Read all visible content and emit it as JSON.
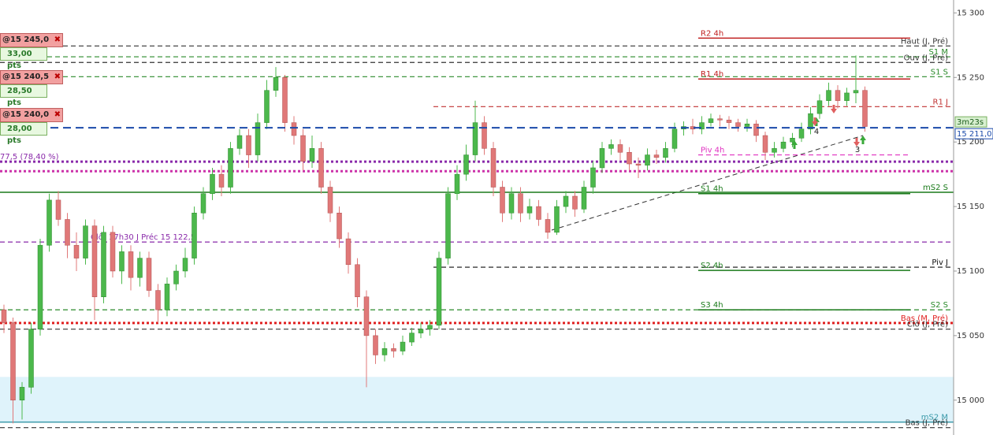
{
  "chart_data": {
    "type": "candlestick",
    "ylim": [
      14973,
      15310
    ],
    "yticks": [
      {
        "value": 15300,
        "label": "15 300"
      },
      {
        "value": 15250,
        "label": "15 250"
      },
      {
        "value": 15200,
        "label": "15 200"
      },
      {
        "value": 15150,
        "label": "15 150"
      },
      {
        "value": 15100,
        "label": "15 100"
      },
      {
        "value": 15050,
        "label": "15 050"
      },
      {
        "value": 15000,
        "label": "15 000"
      }
    ],
    "up_color": "#4cb84c",
    "down_color": "#e07878",
    "candles": [
      [
        15070,
        15074,
        15052,
        15060
      ],
      [
        15060,
        15064,
        14982,
        15000
      ],
      [
        15000,
        15014,
        14985,
        15010
      ],
      [
        15010,
        15060,
        15005,
        15055
      ],
      [
        15055,
        15125,
        15050,
        15120
      ],
      [
        15120,
        15160,
        15115,
        15155
      ],
      [
        15155,
        15162,
        15135,
        15140
      ],
      [
        15140,
        15145,
        15110,
        15120
      ],
      [
        15120,
        15130,
        15100,
        15110
      ],
      [
        15110,
        15140,
        15105,
        15135
      ],
      [
        15135,
        15140,
        15062,
        15080
      ],
      [
        15080,
        15135,
        15075,
        15130
      ],
      [
        15130,
        15135,
        15095,
        15100
      ],
      [
        15100,
        15120,
        15090,
        15115
      ],
      [
        15115,
        15120,
        15085,
        15095
      ],
      [
        15095,
        15115,
        15088,
        15110
      ],
      [
        15110,
        15115,
        15080,
        15085
      ],
      [
        15085,
        15090,
        15060,
        15070
      ],
      [
        15070,
        15095,
        15065,
        15090
      ],
      [
        15090,
        15105,
        15085,
        15100
      ],
      [
        15100,
        15118,
        15095,
        15110
      ],
      [
        15110,
        15150,
        15105,
        15145
      ],
      [
        15145,
        15165,
        15140,
        15160
      ],
      [
        15160,
        15180,
        15155,
        15175
      ],
      [
        15175,
        15182,
        15158,
        15165
      ],
      [
        15165,
        15200,
        15160,
        15195
      ],
      [
        15195,
        15210,
        15190,
        15205
      ],
      [
        15205,
        15210,
        15180,
        15190
      ],
      [
        15190,
        15222,
        15185,
        15215
      ],
      [
        15215,
        15248,
        15210,
        15240
      ],
      [
        15240,
        15258,
        15235,
        15250
      ],
      [
        15250,
        15252,
        15208,
        15215
      ],
      [
        15215,
        15220,
        15198,
        15205
      ],
      [
        15205,
        15210,
        15178,
        15185
      ],
      [
        15185,
        15205,
        15180,
        15195
      ],
      [
        15195,
        15200,
        15160,
        15165
      ],
      [
        15165,
        15170,
        15138,
        15145
      ],
      [
        15145,
        15150,
        15118,
        15125
      ],
      [
        15125,
        15130,
        15098,
        15105
      ],
      [
        15105,
        15110,
        15072,
        15080
      ],
      [
        15080,
        15085,
        15010,
        15050
      ],
      [
        15050,
        15055,
        15028,
        15035
      ],
      [
        15035,
        15045,
        15030,
        15040
      ],
      [
        15040,
        15044,
        15033,
        15038
      ],
      [
        15038,
        15050,
        15035,
        15045
      ],
      [
        15045,
        15056,
        15042,
        15052
      ],
      [
        15052,
        15060,
        15048,
        15055
      ],
      [
        15055,
        15062,
        15050,
        15058
      ],
      [
        15058,
        15115,
        15055,
        15110
      ],
      [
        15110,
        15165,
        15105,
        15160
      ],
      [
        15160,
        15182,
        15155,
        15175
      ],
      [
        15175,
        15198,
        15170,
        15190
      ],
      [
        15190,
        15232,
        15185,
        15215
      ],
      [
        15215,
        15220,
        15190,
        15195
      ],
      [
        15195,
        15200,
        15158,
        15165
      ],
      [
        15165,
        15170,
        15138,
        15145
      ],
      [
        15145,
        15165,
        15140,
        15160
      ],
      [
        15160,
        15165,
        15138,
        15145
      ],
      [
        15145,
        15156,
        15140,
        15150
      ],
      [
        15150,
        15155,
        15135,
        15140
      ],
      [
        15140,
        15145,
        15125,
        15130
      ],
      [
        15130,
        15155,
        15128,
        15150
      ],
      [
        15150,
        15162,
        15145,
        15158
      ],
      [
        15158,
        15162,
        15142,
        15148
      ],
      [
        15148,
        15170,
        15145,
        15165
      ],
      [
        15165,
        15185,
        15160,
        15180
      ],
      [
        15180,
        15200,
        15176,
        15195
      ],
      [
        15195,
        15202,
        15190,
        15198
      ],
      [
        15198,
        15202,
        15186,
        15192
      ],
      [
        15192,
        15196,
        15178,
        15183
      ],
      [
        15183,
        15188,
        15172,
        15182
      ],
      [
        15182,
        15195,
        15178,
        15190
      ],
      [
        15190,
        15194,
        15183,
        15188
      ],
      [
        15188,
        15200,
        15184,
        15195
      ],
      [
        15195,
        15215,
        15192,
        15210
      ],
      [
        15210,
        15216,
        15205,
        15212
      ],
      [
        15212,
        15218,
        15206,
        15210
      ],
      [
        15210,
        15220,
        15206,
        15215
      ],
      [
        15215,
        15222,
        15212,
        15218
      ],
      [
        15218,
        15221,
        15212,
        15217
      ],
      [
        15217,
        15220,
        15210,
        15215
      ],
      [
        15215,
        15218,
        15208,
        15212
      ],
      [
        15212,
        15218,
        15208,
        15214
      ],
      [
        15214,
        15217,
        15200,
        15205
      ],
      [
        15205,
        15208,
        15186,
        15192
      ],
      [
        15192,
        15200,
        15188,
        15195
      ],
      [
        15195,
        15204,
        15192,
        15200
      ],
      [
        15200,
        15207,
        15196,
        15203
      ],
      [
        15203,
        15215,
        15200,
        15210
      ],
      [
        15210,
        15227,
        15206,
        15222
      ],
      [
        15222,
        15237,
        15218,
        15232
      ],
      [
        15232,
        15246,
        15228,
        15240
      ],
      [
        15240,
        15244,
        15226,
        15232
      ],
      [
        15232,
        15242,
        15228,
        15238
      ],
      [
        15238,
        15267,
        15230,
        15240
      ],
      [
        15240,
        15243,
        15208,
        15212
      ]
    ],
    "zone": [
      14983,
      15018
    ],
    "zone_color": "#dff3fb",
    "levels": [
      {
        "label": "Haut (J, Pré)",
        "value": 15274.4,
        "color": "#333333",
        "style": "dashed"
      },
      {
        "label": "S1 M",
        "value": 15266,
        "color": "#2a8a2a",
        "style": "dashed"
      },
      {
        "label": "Ouv (J, Pré)",
        "value": 15261.6,
        "color": "#333333",
        "style": "dashed"
      },
      {
        "label": "S1 S",
        "value": 15250.6,
        "color": "#2a8a2a",
        "style": "dashed"
      },
      {
        "label": "77,5 (78,40 %)",
        "value": 15184.8,
        "color": "#8a2aaa",
        "style": "dotted"
      },
      {
        "value": 15177.4,
        "color": "#cc33aa",
        "style": "dotted"
      },
      {
        "label": "mS2 S",
        "value": 15161,
        "color": "#1a7a1a",
        "style": "solid"
      },
      {
        "label": "Clôt 17h30 J Préc 15 122,5",
        "value": 15122.5,
        "color": "#8a2aaa",
        "style": "dashed"
      },
      {
        "label": "S2 S",
        "value": 15070,
        "color": "#2a8a2a",
        "style": "dashed"
      },
      {
        "label": "Bas (M, Pré)",
        "value": 15059.8,
        "color": "#e02020",
        "style": "dotted"
      },
      {
        "label": "Clô (J, Pré)",
        "value": 15055,
        "color": "#333333",
        "style": "dashed"
      },
      {
        "label": "mS2 M",
        "value": 14983,
        "color": "#3a9aaa",
        "style": "solid"
      },
      {
        "label": "Bas (J, Pré)",
        "value": 14978.7,
        "color": "#333333",
        "style": "dashed"
      }
    ],
    "levels_daily": [
      {
        "label": "R1 J",
        "value": 15227.4,
        "color": "#c03030",
        "style": "dashed"
      },
      {
        "label": "Piv J",
        "value": 15103,
        "color": "#111111",
        "style": "dashed"
      }
    ],
    "levels_4h": [
      {
        "label": "R2 4h",
        "value": 15280.5,
        "color": "#c02020",
        "style": "solid"
      },
      {
        "label": "R1 4h",
        "value": 15248.8,
        "color": "#c02020",
        "style": "solid"
      },
      {
        "label": "Piv 4h",
        "value": 15190,
        "color": "#e030c0",
        "style": "dashed"
      },
      {
        "label": "S1 4h",
        "value": 15160,
        "color": "#1a7a1a",
        "style": "solid"
      },
      {
        "label": "S2 4h",
        "value": 15100.5,
        "color": "#1a7a1a",
        "style": "solid"
      },
      {
        "label": "S3 4h",
        "value": 15070,
        "color": "#1a7a1a",
        "style": "solid"
      }
    ],
    "current": {
      "value": 15211,
      "label": "15 211,0",
      "timer": "3m23s",
      "color": "#1a4aaa"
    },
    "annotations": [
      "4",
      "3"
    ]
  },
  "orders": [
    {
      "price": "@15 245,0",
      "pts": "33,00 pts"
    },
    {
      "price": "@15 240,5",
      "pts": "28,50 pts"
    },
    {
      "price": "@15 240,0",
      "pts": "28,00 pts"
    }
  ]
}
